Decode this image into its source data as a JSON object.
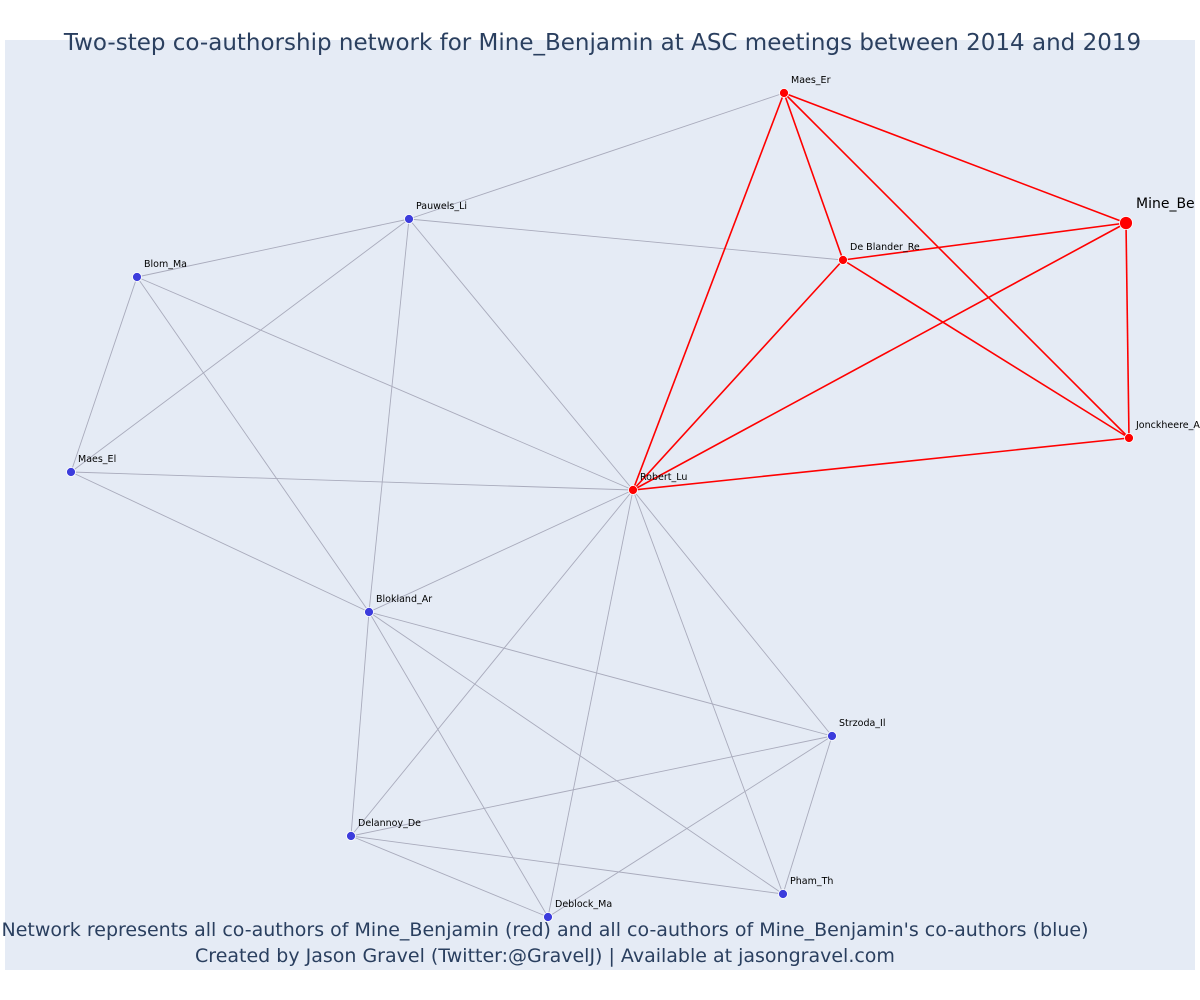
{
  "title": "Two-step co-authorship network for Mine_Benjamin at ASC meetings between 2014 and 2019",
  "captions": [
    "Network represents all co-authors of Mine_Benjamin (red) and all co-authors of Mine_Benjamin's co-authors (blue)",
    "Created by Jason Gravel (Twitter:@GravelJ) | Available at jasongravel.com"
  ],
  "colors": {
    "ego": "#ff0000",
    "coauthor": "#ff0000",
    "second_step": "#3c3cdc",
    "edge_red": "#ff0000",
    "edge_grey": "#a9abbc",
    "background": "#e5ebf5",
    "text": "#2a3f5f"
  },
  "chart_data": {
    "type": "network",
    "title": "Two-step co-authorship network for Mine_Benjamin at ASC meetings between 2014 and 2019",
    "nodes": [
      {
        "id": "Mine_Benjamin",
        "label": "Mine_Be",
        "group": "ego"
      },
      {
        "id": "Maes_Er",
        "label": "Maes_Er",
        "group": "coauthor"
      },
      {
        "id": "De Blander_Re",
        "label": "De Blander_Re",
        "group": "coauthor"
      },
      {
        "id": "Jonckheere_A",
        "label": "Jonckheere_A",
        "group": "coauthor"
      },
      {
        "id": "Robert_Lu",
        "label": "Robert_Lu",
        "group": "coauthor"
      },
      {
        "id": "Pauwels_Li",
        "label": "Pauwels_Li",
        "group": "second_step"
      },
      {
        "id": "Blom_Ma",
        "label": "Blom_Ma",
        "group": "second_step"
      },
      {
        "id": "Maes_El",
        "label": "Maes_El",
        "group": "second_step"
      },
      {
        "id": "Blokland_Ar",
        "label": "Blokland_Ar",
        "group": "second_step"
      },
      {
        "id": "Strzoda_Il",
        "label": "Strzoda_Il",
        "group": "second_step"
      },
      {
        "id": "Delannoy_De",
        "label": "Delannoy_De",
        "group": "second_step"
      },
      {
        "id": "Pham_Th",
        "label": "Pham_Th",
        "group": "second_step"
      },
      {
        "id": "Deblock_Ma",
        "label": "Deblock_Ma",
        "group": "second_step"
      }
    ],
    "edges": [
      {
        "source": "Maes_Er",
        "target": "Mine_Benjamin",
        "color": "red"
      },
      {
        "source": "Maes_Er",
        "target": "De Blander_Re",
        "color": "red"
      },
      {
        "source": "Maes_Er",
        "target": "Robert_Lu",
        "color": "red"
      },
      {
        "source": "Maes_Er",
        "target": "Jonckheere_A",
        "color": "red"
      },
      {
        "source": "De Blander_Re",
        "target": "Mine_Benjamin",
        "color": "red"
      },
      {
        "source": "De Blander_Re",
        "target": "Robert_Lu",
        "color": "red"
      },
      {
        "source": "De Blander_Re",
        "target": "Jonckheere_A",
        "color": "red"
      },
      {
        "source": "Mine_Benjamin",
        "target": "Robert_Lu",
        "color": "red"
      },
      {
        "source": "Mine_Benjamin",
        "target": "Jonckheere_A",
        "color": "red"
      },
      {
        "source": "Jonckheere_A",
        "target": "Robert_Lu",
        "color": "red"
      },
      {
        "source": "Maes_Er",
        "target": "Pauwels_Li",
        "color": "grey"
      },
      {
        "source": "Pauwels_Li",
        "target": "De Blander_Re",
        "color": "grey"
      },
      {
        "source": "Pauwels_Li",
        "target": "Blom_Ma",
        "color": "grey"
      },
      {
        "source": "Pauwels_Li",
        "target": "Maes_El",
        "color": "grey"
      },
      {
        "source": "Pauwels_Li",
        "target": "Robert_Lu",
        "color": "grey"
      },
      {
        "source": "Pauwels_Li",
        "target": "Blokland_Ar",
        "color": "grey"
      },
      {
        "source": "Blom_Ma",
        "target": "Maes_El",
        "color": "grey"
      },
      {
        "source": "Blom_Ma",
        "target": "Robert_Lu",
        "color": "grey"
      },
      {
        "source": "Blom_Ma",
        "target": "Blokland_Ar",
        "color": "grey"
      },
      {
        "source": "Maes_El",
        "target": "Robert_Lu",
        "color": "grey"
      },
      {
        "source": "Maes_El",
        "target": "Blokland_Ar",
        "color": "grey"
      },
      {
        "source": "Robert_Lu",
        "target": "Blokland_Ar",
        "color": "grey"
      },
      {
        "source": "Robert_Lu",
        "target": "Strzoda_Il",
        "color": "grey"
      },
      {
        "source": "Robert_Lu",
        "target": "Delannoy_De",
        "color": "grey"
      },
      {
        "source": "Robert_Lu",
        "target": "Deblock_Ma",
        "color": "grey"
      },
      {
        "source": "Robert_Lu",
        "target": "Pham_Th",
        "color": "grey"
      },
      {
        "source": "Blokland_Ar",
        "target": "Strzoda_Il",
        "color": "grey"
      },
      {
        "source": "Blokland_Ar",
        "target": "Delannoy_De",
        "color": "grey"
      },
      {
        "source": "Blokland_Ar",
        "target": "Deblock_Ma",
        "color": "grey"
      },
      {
        "source": "Blokland_Ar",
        "target": "Pham_Th",
        "color": "grey"
      },
      {
        "source": "Strzoda_Il",
        "target": "Delannoy_De",
        "color": "grey"
      },
      {
        "source": "Strzoda_Il",
        "target": "Deblock_Ma",
        "color": "grey"
      },
      {
        "source": "Strzoda_Il",
        "target": "Pham_Th",
        "color": "grey"
      },
      {
        "source": "Delannoy_De",
        "target": "Deblock_Ma",
        "color": "grey"
      },
      {
        "source": "Delannoy_De",
        "target": "Pham_Th",
        "color": "grey"
      }
    ]
  }
}
